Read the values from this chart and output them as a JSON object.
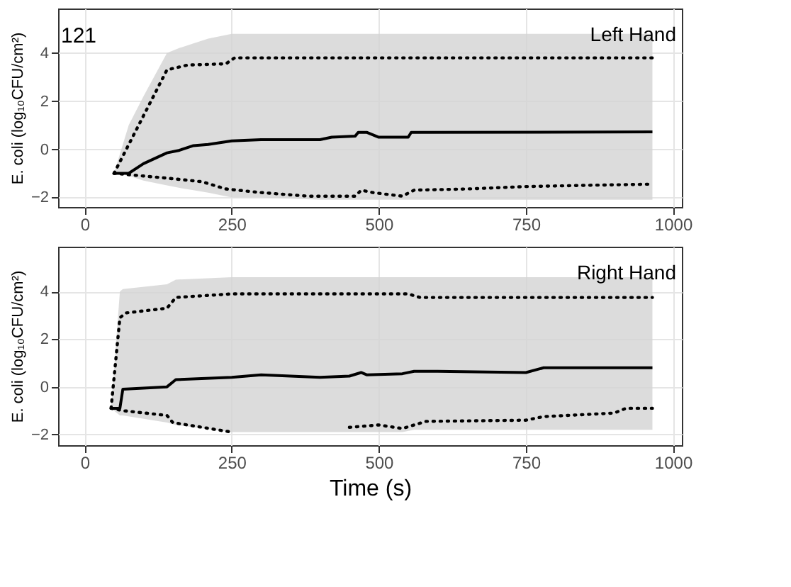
{
  "chart_data": [
    {
      "type": "line",
      "ylabel": "E. coli (log₁₀CFU/cm²)",
      "annotations": [
        "121",
        "Left Hand"
      ],
      "xlim": [
        -45,
        1015
      ],
      "xticks": [
        0,
        250,
        500,
        750,
        1000
      ],
      "ylim": [
        -2.4,
        5.85
      ],
      "yticks": [
        -2,
        0,
        2,
        4
      ],
      "grid": true,
      "marker": "none",
      "series": [
        {
          "color": "#000000",
          "line_style": "solid",
          "x": [
            50,
            75,
            100,
            140,
            160,
            185,
            210,
            250,
            300,
            400,
            420,
            460,
            465,
            480,
            500,
            550,
            555,
            965
          ],
          "values": [
            -1,
            -1,
            -0.6,
            -0.15,
            -0.05,
            0.15,
            0.2,
            0.35,
            0.4,
            0.4,
            0.5,
            0.55,
            0.7,
            0.7,
            0.5,
            0.5,
            0.7,
            0.72
          ],
          "lower": [
            -1,
            -1.1,
            -1.3,
            -1.5,
            -1.6,
            -1.7,
            -1.8,
            -2.0,
            -2.0,
            -2.1,
            -2.1,
            -2.1,
            -2.1,
            -2.1,
            -2.1,
            -2.1,
            -2.1,
            -2.1
          ],
          "upper": [
            -1,
            1.0,
            2.2,
            4.0,
            4.2,
            4.4,
            4.6,
            4.8,
            4.8,
            4.8,
            4.8,
            4.8,
            4.8,
            4.8,
            4.8,
            4.8,
            4.8,
            4.8
          ]
        },
        {
          "color": "#000000",
          "line_style": "dotted",
          "x": [
            50,
            140,
            175,
            240,
            255,
            965
          ],
          "values": [
            -1,
            3.3,
            3.5,
            3.55,
            3.8,
            3.8
          ]
        },
        {
          "color": "#000000",
          "line_style": "dotted",
          "x": [
            50,
            140,
            200,
            240,
            300,
            380,
            460,
            470,
            490,
            540,
            560,
            650,
            750,
            850,
            965
          ],
          "values": [
            -1,
            -1.2,
            -1.35,
            -1.65,
            -1.8,
            -1.95,
            -1.95,
            -1.7,
            -1.8,
            -1.95,
            -1.7,
            -1.65,
            -1.55,
            -1.5,
            -1.45
          ]
        }
      ]
    },
    {
      "type": "line",
      "xlabel": "Time (s)",
      "ylabel": "E. coli (log₁₀CFU/cm²)",
      "annotations": [
        "Right Hand"
      ],
      "xlim": [
        -45,
        1015
      ],
      "xticks": [
        0,
        250,
        500,
        750,
        1000
      ],
      "ylim": [
        -2.45,
        5.88
      ],
      "yticks": [
        -2,
        0,
        2,
        4
      ],
      "grid": true,
      "marker": "none",
      "series": [
        {
          "color": "#000000",
          "line_style": "solid",
          "x": [
            45,
            60,
            65,
            140,
            155,
            250,
            300,
            400,
            450,
            470,
            480,
            540,
            560,
            600,
            750,
            780,
            965
          ],
          "values": [
            -0.9,
            -0.9,
            -0.1,
            0,
            0.3,
            0.4,
            0.5,
            0.4,
            0.45,
            0.6,
            0.5,
            0.55,
            0.65,
            0.65,
            0.6,
            0.8,
            0.8
          ],
          "lower": [
            -0.9,
            -1.2,
            -1.2,
            -1.5,
            -1.6,
            -1.9,
            -1.9,
            -1.9,
            -1.9,
            -1.9,
            -1.9,
            -1.9,
            -1.8,
            -1.8,
            -1.8,
            -1.8,
            -1.8
          ],
          "upper": [
            -0.9,
            4.0,
            4.1,
            4.3,
            4.5,
            4.6,
            4.6,
            4.6,
            4.6,
            4.6,
            4.6,
            4.6,
            4.6,
            4.6,
            4.6,
            4.6,
            4.6
          ]
        },
        {
          "color": "#000000",
          "line_style": "dotted",
          "x": [
            45,
            60,
            70,
            140,
            155,
            250,
            550,
            570,
            965
          ],
          "values": [
            -0.9,
            2.9,
            3.1,
            3.3,
            3.75,
            3.9,
            3.9,
            3.75,
            3.75
          ]
        },
        {
          "color": "#000000",
          "line_style": "dotted",
          "x": [
            45,
            65,
            140,
            150,
            250,
            350,
            450,
            500,
            540,
            580,
            750,
            780,
            900,
            920,
            965
          ],
          "values": [
            -0.9,
            -1.0,
            -1.2,
            -1.5,
            -1.9,
            null,
            -1.7,
            -1.6,
            -1.75,
            -1.45,
            -1.4,
            -1.25,
            -1.1,
            -0.9,
            -0.9
          ]
        }
      ]
    }
  ]
}
